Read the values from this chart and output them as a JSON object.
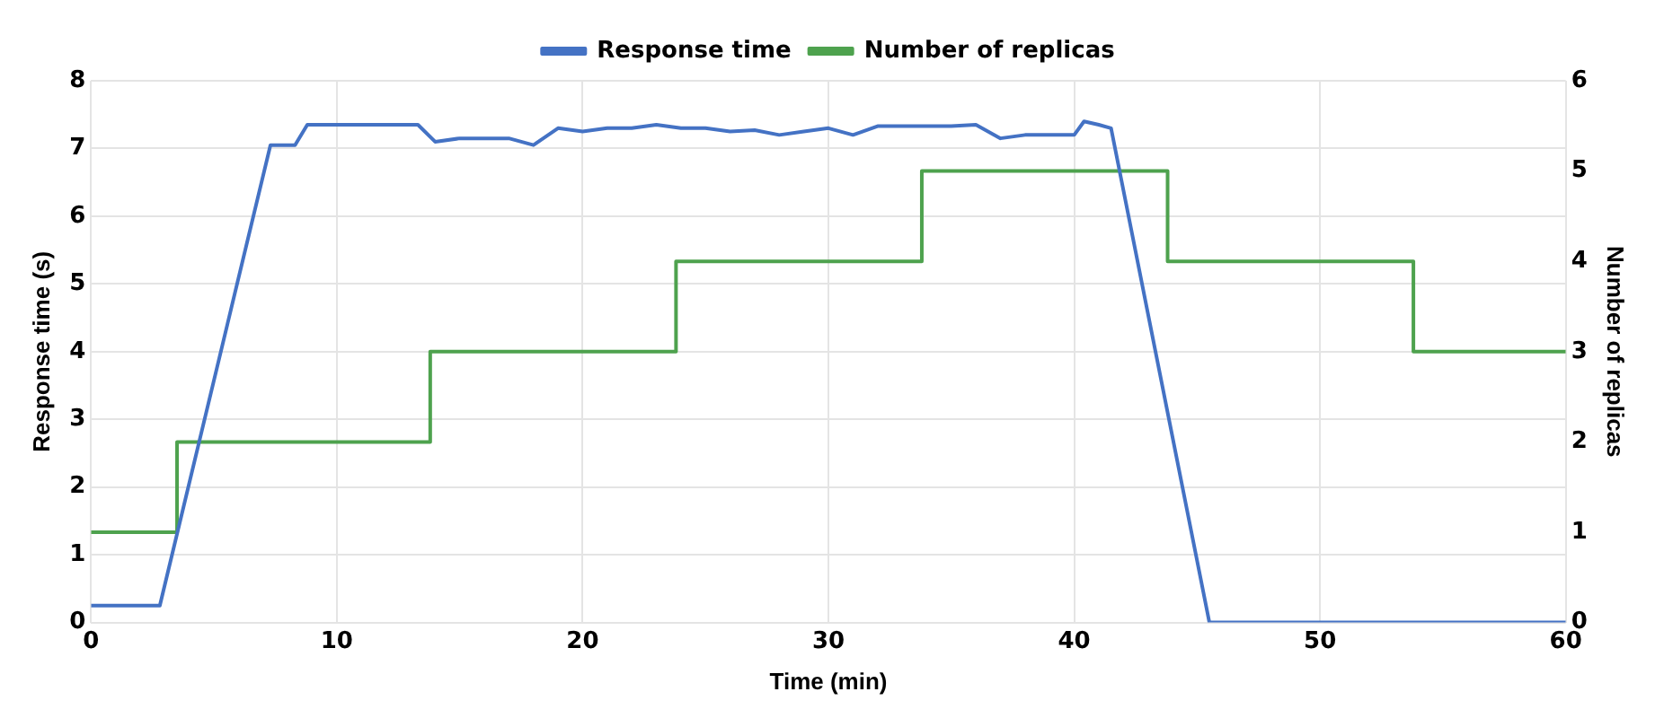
{
  "chart_data": {
    "type": "line",
    "xlabel": "Time (min)",
    "ylabel": "Response time (s)",
    "y2label": "Number of replicas",
    "xlim": [
      0,
      60
    ],
    "xticks": [
      0,
      10,
      20,
      30,
      40,
      50,
      60
    ],
    "ylim": [
      0,
      8
    ],
    "yticks": [
      0,
      1,
      2,
      3,
      4,
      5,
      6,
      7,
      8
    ],
    "y2lim": [
      0,
      6
    ],
    "y2ticks": [
      0,
      1,
      2,
      3,
      4,
      5,
      6
    ],
    "grid": true,
    "legend": "top",
    "marker": "none",
    "line_style": "solid",
    "series": [
      {
        "name": "Response time",
        "color": "#4472c4",
        "x": [
          0,
          2.8,
          7.3,
          8.3,
          8.8,
          12.5,
          13.3,
          14,
          15,
          16,
          17,
          18,
          19,
          20,
          21,
          22,
          23,
          24,
          25,
          26,
          27,
          28,
          29,
          30,
          31,
          32,
          35,
          36,
          37,
          38,
          39,
          40,
          40.4,
          41,
          41.5,
          45.5,
          60
        ],
        "values": [
          0.25,
          0.25,
          7.05,
          7.05,
          7.35,
          7.35,
          7.35,
          7.1,
          7.15,
          7.15,
          7.15,
          7.05,
          7.3,
          7.25,
          7.3,
          7.3,
          7.35,
          7.3,
          7.3,
          7.25,
          7.27,
          7.2,
          7.25,
          7.3,
          7.2,
          7.33,
          7.33,
          7.35,
          7.15,
          7.2,
          7.2,
          7.2,
          7.4,
          7.35,
          7.3,
          0,
          0
        ]
      },
      {
        "name": "Number of replicas",
        "type": "step",
        "axis": "y2",
        "color": "#4ea24e",
        "x": [
          0,
          3.5,
          13.8,
          23.8,
          33.8,
          43.8,
          53.8,
          60
        ],
        "values": [
          1,
          2,
          3,
          4,
          5,
          4,
          3,
          3
        ]
      }
    ]
  }
}
